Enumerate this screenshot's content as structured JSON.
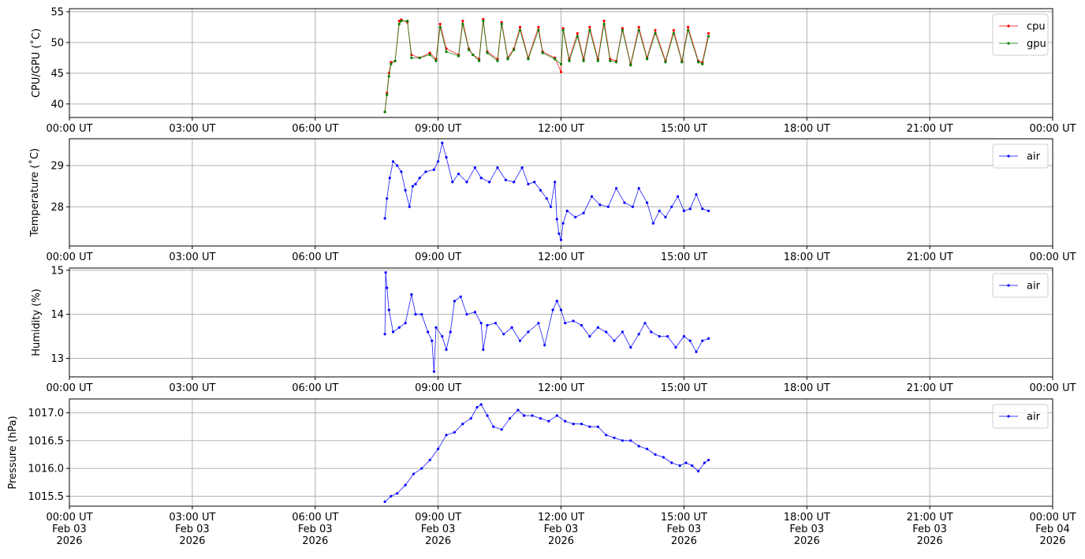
{
  "chart_data": [
    {
      "type": "line",
      "ylabel": "CPU/GPU (˚C)",
      "xlim": [
        "00:00 UT",
        "00:00 UT (next day)"
      ],
      "x_tick_labels": [
        "00:00 UT",
        "03:00 UT",
        "06:00 UT",
        "09:00 UT",
        "12:00 UT",
        "15:00 UT",
        "18:00 UT",
        "21:00 UT",
        "00:00 UT"
      ],
      "ylim": [
        37.8,
        55.5
      ],
      "y_ticks": [
        40,
        45,
        50,
        55
      ],
      "grid": true,
      "legend_position": "top-right",
      "series": [
        {
          "name": "cpu",
          "color": "#ff0000",
          "marker_color": "#ff0000",
          "x_hours": [
            7.7,
            7.75,
            7.8,
            7.85,
            7.95,
            8.05,
            8.1,
            8.25,
            8.35,
            8.55,
            8.8,
            8.95,
            9.05,
            9.2,
            9.5,
            9.6,
            9.75,
            9.85,
            10.0,
            10.1,
            10.2,
            10.45,
            10.55,
            10.7,
            10.85,
            11.0,
            11.2,
            11.45,
            11.55,
            11.85,
            12.0,
            12.05,
            12.2,
            12.4,
            12.55,
            12.7,
            12.9,
            13.05,
            13.2,
            13.35,
            13.5,
            13.7,
            13.9,
            14.1,
            14.3,
            14.55,
            14.75,
            14.95,
            15.1,
            15.35,
            15.45,
            15.6
          ],
          "values": [
            38.7,
            41.8,
            45.0,
            46.8,
            47.0,
            53.5,
            53.7,
            53.3,
            48.0,
            47.5,
            48.3,
            47.3,
            53.0,
            49.0,
            48.0,
            53.5,
            49.0,
            48.0,
            47.3,
            53.8,
            48.5,
            47.3,
            53.3,
            47.5,
            49.0,
            52.5,
            47.5,
            52.5,
            48.5,
            47.5,
            45.2,
            52.3,
            47.3,
            51.5,
            47.3,
            52.5,
            47.3,
            53.5,
            47.3,
            47.0,
            52.3,
            46.5,
            52.5,
            47.5,
            52.0,
            47.0,
            52.0,
            47.0,
            52.5,
            47.0,
            46.8,
            51.5
          ]
        },
        {
          "name": "gpu",
          "color": "#008000",
          "marker_color": "#008000",
          "x_hours": [
            7.7,
            7.75,
            7.8,
            7.85,
            7.95,
            8.05,
            8.1,
            8.25,
            8.35,
            8.55,
            8.8,
            8.95,
            9.05,
            9.2,
            9.5,
            9.6,
            9.75,
            9.85,
            10.0,
            10.1,
            10.2,
            10.45,
            10.55,
            10.7,
            10.85,
            11.0,
            11.2,
            11.45,
            11.55,
            11.85,
            12.0,
            12.05,
            12.2,
            12.4,
            12.55,
            12.7,
            12.9,
            13.05,
            13.2,
            13.35,
            13.5,
            13.7,
            13.9,
            14.1,
            14.3,
            14.55,
            14.75,
            14.95,
            15.1,
            15.35,
            15.45,
            15.6
          ],
          "values": [
            38.7,
            41.5,
            44.5,
            46.5,
            47.0,
            53.0,
            53.5,
            53.5,
            47.5,
            47.5,
            48.0,
            47.0,
            52.5,
            48.5,
            47.8,
            53.0,
            48.8,
            48.0,
            47.0,
            53.5,
            48.3,
            47.0,
            53.0,
            47.3,
            48.8,
            52.0,
            47.3,
            52.0,
            48.3,
            47.3,
            46.5,
            52.0,
            47.0,
            51.0,
            47.0,
            52.0,
            47.0,
            53.0,
            47.0,
            46.8,
            52.0,
            46.3,
            52.0,
            47.3,
            51.5,
            46.8,
            51.5,
            46.8,
            52.0,
            46.8,
            46.5,
            51.0
          ]
        }
      ]
    },
    {
      "type": "line",
      "ylabel": "Temperature (˚C)",
      "x_tick_labels": [
        "00:00 UT",
        "03:00 UT",
        "06:00 UT",
        "09:00 UT",
        "12:00 UT",
        "15:00 UT",
        "18:00 UT",
        "21:00 UT",
        "00:00 UT"
      ],
      "ylim": [
        27.05,
        29.65
      ],
      "y_ticks": [
        28,
        29
      ],
      "grid": true,
      "legend_position": "top-right",
      "series": [
        {
          "name": "air",
          "color": "#0000ff",
          "x_hours": [
            7.7,
            7.75,
            7.82,
            7.9,
            8.0,
            8.1,
            8.2,
            8.3,
            8.38,
            8.45,
            8.55,
            8.7,
            8.9,
            9.0,
            9.1,
            9.2,
            9.35,
            9.5,
            9.7,
            9.9,
            10.05,
            10.25,
            10.45,
            10.65,
            10.85,
            11.05,
            11.2,
            11.35,
            11.5,
            11.65,
            11.75,
            11.85,
            11.9,
            11.95,
            12.0,
            12.05,
            12.15,
            12.35,
            12.55,
            12.75,
            12.95,
            13.15,
            13.35,
            13.55,
            13.75,
            13.9,
            14.1,
            14.25,
            14.4,
            14.55,
            14.7,
            14.85,
            15.0,
            15.15,
            15.3,
            15.45,
            15.6
          ],
          "values": [
            27.72,
            28.2,
            28.7,
            29.1,
            29.0,
            28.85,
            28.4,
            28.0,
            28.5,
            28.55,
            28.7,
            28.85,
            28.9,
            29.1,
            29.55,
            29.2,
            28.6,
            28.8,
            28.6,
            28.95,
            28.7,
            28.6,
            28.95,
            28.65,
            28.6,
            28.95,
            28.55,
            28.6,
            28.4,
            28.2,
            28.0,
            28.6,
            27.7,
            27.35,
            27.2,
            27.6,
            27.9,
            27.75,
            27.85,
            28.25,
            28.05,
            28.0,
            28.45,
            28.1,
            28.0,
            28.45,
            28.1,
            27.6,
            27.9,
            27.75,
            28.0,
            28.25,
            27.9,
            27.95,
            28.3,
            27.95,
            27.9
          ]
        }
      ]
    },
    {
      "type": "line",
      "ylabel": "Humidity (%)",
      "x_tick_labels": [
        "00:00 UT",
        "03:00 UT",
        "06:00 UT",
        "09:00 UT",
        "12:00 UT",
        "15:00 UT",
        "18:00 UT",
        "21:00 UT",
        "00:00 UT"
      ],
      "ylim": [
        12.58,
        15.05
      ],
      "y_ticks": [
        13,
        14,
        15
      ],
      "grid": true,
      "legend_position": "top-right",
      "series": [
        {
          "name": "air",
          "color": "#0000ff",
          "x_hours": [
            7.7,
            7.72,
            7.75,
            7.8,
            7.9,
            8.05,
            8.2,
            8.35,
            8.45,
            8.6,
            8.75,
            8.85,
            8.9,
            8.95,
            9.1,
            9.2,
            9.3,
            9.4,
            9.55,
            9.7,
            9.9,
            10.05,
            10.1,
            10.2,
            10.4,
            10.6,
            10.8,
            11.0,
            11.2,
            11.45,
            11.6,
            11.8,
            11.9,
            12.0,
            12.1,
            12.3,
            12.5,
            12.7,
            12.9,
            13.1,
            13.3,
            13.5,
            13.7,
            13.9,
            14.05,
            14.2,
            14.4,
            14.6,
            14.8,
            15.0,
            15.15,
            15.3,
            15.45,
            15.6
          ],
          "values": [
            13.55,
            14.95,
            14.6,
            14.1,
            13.6,
            13.7,
            13.8,
            14.45,
            14.0,
            14.0,
            13.6,
            13.4,
            12.7,
            13.7,
            13.5,
            13.2,
            13.6,
            14.3,
            14.4,
            14.0,
            14.05,
            13.8,
            13.2,
            13.75,
            13.8,
            13.55,
            13.7,
            13.4,
            13.6,
            13.8,
            13.3,
            14.1,
            14.3,
            14.1,
            13.8,
            13.85,
            13.75,
            13.5,
            13.7,
            13.6,
            13.4,
            13.6,
            13.25,
            13.55,
            13.8,
            13.6,
            13.5,
            13.5,
            13.25,
            13.5,
            13.4,
            13.15,
            13.4,
            13.45
          ]
        }
      ]
    },
    {
      "type": "line",
      "ylabel": "Pressure (hPa)",
      "x_tick_labels": [
        "00:00 UT\nFeb 03\n2026",
        "03:00 UT\nFeb 03\n2026",
        "06:00 UT\nFeb 03\n2026",
        "09:00 UT\nFeb 03\n2026",
        "12:00 UT\nFeb 03\n2026",
        "15:00 UT\nFeb 03\n2026",
        "18:00 UT\nFeb 03\n2026",
        "21:00 UT\nFeb 03\n2026",
        "00:00 UT\nFeb 04\n2026"
      ],
      "ylim": [
        1015.32,
        1017.25
      ],
      "y_ticks": [
        1015.5,
        1016.0,
        1016.5,
        1017.0
      ],
      "grid": true,
      "legend_position": "top-right",
      "series": [
        {
          "name": "air",
          "color": "#0000ff",
          "x_hours": [
            7.7,
            7.85,
            8.0,
            8.2,
            8.4,
            8.6,
            8.8,
            9.0,
            9.2,
            9.4,
            9.6,
            9.8,
            9.95,
            10.05,
            10.2,
            10.35,
            10.55,
            10.75,
            10.95,
            11.1,
            11.3,
            11.5,
            11.7,
            11.9,
            12.1,
            12.3,
            12.5,
            12.7,
            12.9,
            13.1,
            13.3,
            13.5,
            13.7,
            13.9,
            14.1,
            14.3,
            14.5,
            14.7,
            14.9,
            15.05,
            15.2,
            15.35,
            15.5,
            15.6
          ],
          "values": [
            1015.4,
            1015.5,
            1015.55,
            1015.7,
            1015.9,
            1016.0,
            1016.15,
            1016.35,
            1016.6,
            1016.65,
            1016.8,
            1016.9,
            1017.1,
            1017.15,
            1016.95,
            1016.75,
            1016.7,
            1016.9,
            1017.05,
            1016.95,
            1016.95,
            1016.9,
            1016.85,
            1016.95,
            1016.85,
            1016.8,
            1016.8,
            1016.75,
            1016.75,
            1016.6,
            1016.55,
            1016.5,
            1016.5,
            1016.4,
            1016.35,
            1016.25,
            1016.2,
            1016.1,
            1016.05,
            1016.1,
            1016.05,
            1015.95,
            1016.1,
            1016.15
          ]
        }
      ]
    }
  ]
}
